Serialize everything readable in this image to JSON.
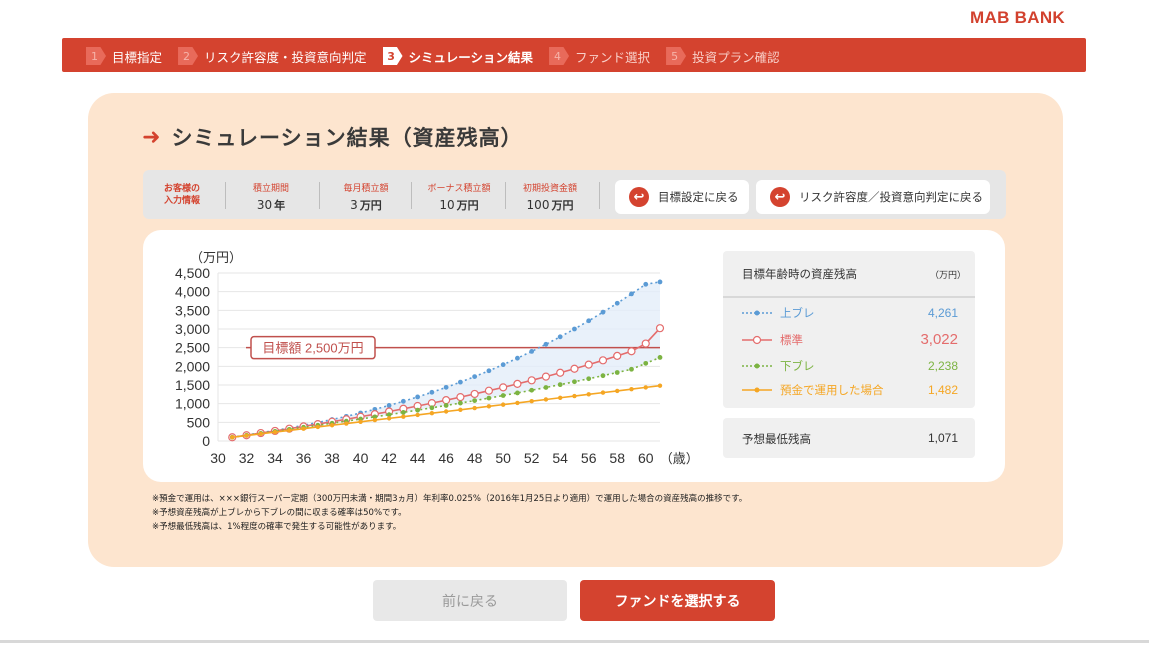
{
  "brand": "MAB BANK",
  "steps": [
    {
      "num": "1",
      "label": "目標指定",
      "state": "done"
    },
    {
      "num": "2",
      "label": "リスク許容度・投資意向判定",
      "state": "done"
    },
    {
      "num": "3",
      "label": "シミュレーション結果",
      "state": "active"
    },
    {
      "num": "4",
      "label": "ファンド選択",
      "state": "pending"
    },
    {
      "num": "5",
      "label": "投資プラン確認",
      "state": "pending"
    }
  ],
  "title": "シミュレーション結果（資産残高）",
  "input_info": {
    "label_line1": "お客様の",
    "label_line2": "入力情報",
    "items": [
      {
        "label": "積立期間",
        "value": "30",
        "unit": "年"
      },
      {
        "label": "毎月積立額",
        "value": "3",
        "unit": "万円"
      },
      {
        "label": "ボーナス積立額",
        "value": "10",
        "unit": "万円"
      },
      {
        "label": "初期投資金額",
        "value": "100",
        "unit": "万円"
      }
    ]
  },
  "back_buttons": {
    "goal": "目標設定に戻る",
    "risk": "リスク許容度／投資意向判定に戻る"
  },
  "chart_data": {
    "type": "line",
    "ylabel": "（万円）",
    "xlabel": "（歳）",
    "ylim": [
      0,
      4500
    ],
    "yticks": [
      0,
      500,
      1000,
      1500,
      2000,
      2500,
      3000,
      3500,
      4000,
      4500
    ],
    "ytick_labels": [
      "0",
      "500",
      "1,000",
      "1,500",
      "2,000",
      "2,500",
      "3,000",
      "3,500",
      "4,000",
      "4,500"
    ],
    "xlim": [
      30,
      61
    ],
    "xticks": [
      30,
      32,
      34,
      36,
      38,
      40,
      42,
      44,
      46,
      48,
      50,
      52,
      54,
      56,
      58,
      60
    ],
    "target": {
      "value": 2500,
      "label": "目標額 2,500万円"
    },
    "x": [
      31,
      32,
      33,
      34,
      35,
      36,
      37,
      38,
      39,
      40,
      41,
      42,
      43,
      44,
      45,
      46,
      47,
      48,
      49,
      50,
      51,
      52,
      53,
      54,
      55,
      56,
      57,
      58,
      59,
      60,
      61
    ],
    "series": [
      {
        "name": "上ブレ",
        "color": "#5b9bd5",
        "values": [
          100,
          158,
          220,
          283,
          348,
          420,
          495,
          575,
          660,
          750,
          848,
          952,
          1063,
          1180,
          1305,
          1437,
          1577,
          1725,
          1881,
          2045,
          2218,
          2400,
          2591,
          2791,
          3000,
          3220,
          3450,
          3690,
          3940,
          4198,
          4261
        ]
      },
      {
        "name": "標準",
        "color": "#e46c6c",
        "values": [
          100,
          155,
          212,
          270,
          330,
          391,
          453,
          517,
          582,
          650,
          719,
          790,
          863,
          938,
          1015,
          1094,
          1176,
          1260,
          1347,
          1437,
          1530,
          1626,
          1725,
          1828,
          1935,
          2046,
          2161,
          2280,
          2404,
          2610,
          3022
        ]
      },
      {
        "name": "下ブレ",
        "color": "#7cb342",
        "values": [
          100,
          152,
          205,
          258,
          312,
          366,
          421,
          476,
          532,
          589,
          647,
          706,
          766,
          827,
          889,
          952,
          1016,
          1082,
          1149,
          1218,
          1288,
          1360,
          1434,
          1510,
          1588,
          1668,
          1750,
          1835,
          1922,
          2080,
          2238
        ]
      },
      {
        "name": "預金で運用した場合",
        "color": "#f5a623",
        "values": [
          100,
          146,
          192,
          238,
          284,
          330,
          376,
          422,
          468,
          514,
          560,
          606,
          652,
          698,
          744,
          790,
          836,
          882,
          928,
          974,
          1020,
          1066,
          1112,
          1158,
          1204,
          1250,
          1296,
          1342,
          1388,
          1436,
          1482
        ]
      }
    ]
  },
  "legend": {
    "heading": "目標年齢時の資産残高",
    "unit": "（万円）",
    "rows": [
      {
        "name": "上ブレ",
        "value": "4,261",
        "color": "#5b9bd5"
      },
      {
        "name": "標準",
        "value": "3,022",
        "color": "#e46c6c"
      },
      {
        "name": "下ブレ",
        "value": "2,238",
        "color": "#7cb342"
      },
      {
        "name": "預金で運用した場合",
        "value": "1,482",
        "color": "#f5a623"
      }
    ]
  },
  "min_balance": {
    "label": "予想最低残高",
    "value": "1,071"
  },
  "notes": [
    "※預金で運用は、×××銀行スーパー定期（300万円未満・期間3ヵ月）年利率0.025%（2016年1月25日より適用）で運用した場合の資産残高の推移です。",
    "※予想資産残高が上ブレから下ブレの間に収まる確率は50%です。",
    "※予想最低残高は、1%程度の確率で発生する可能性があります。"
  ],
  "nav": {
    "prev": "前に戻る",
    "next": "ファンドを選択する"
  },
  "colors": {
    "accent": "#d4432f",
    "panel": "#fde5cf"
  }
}
